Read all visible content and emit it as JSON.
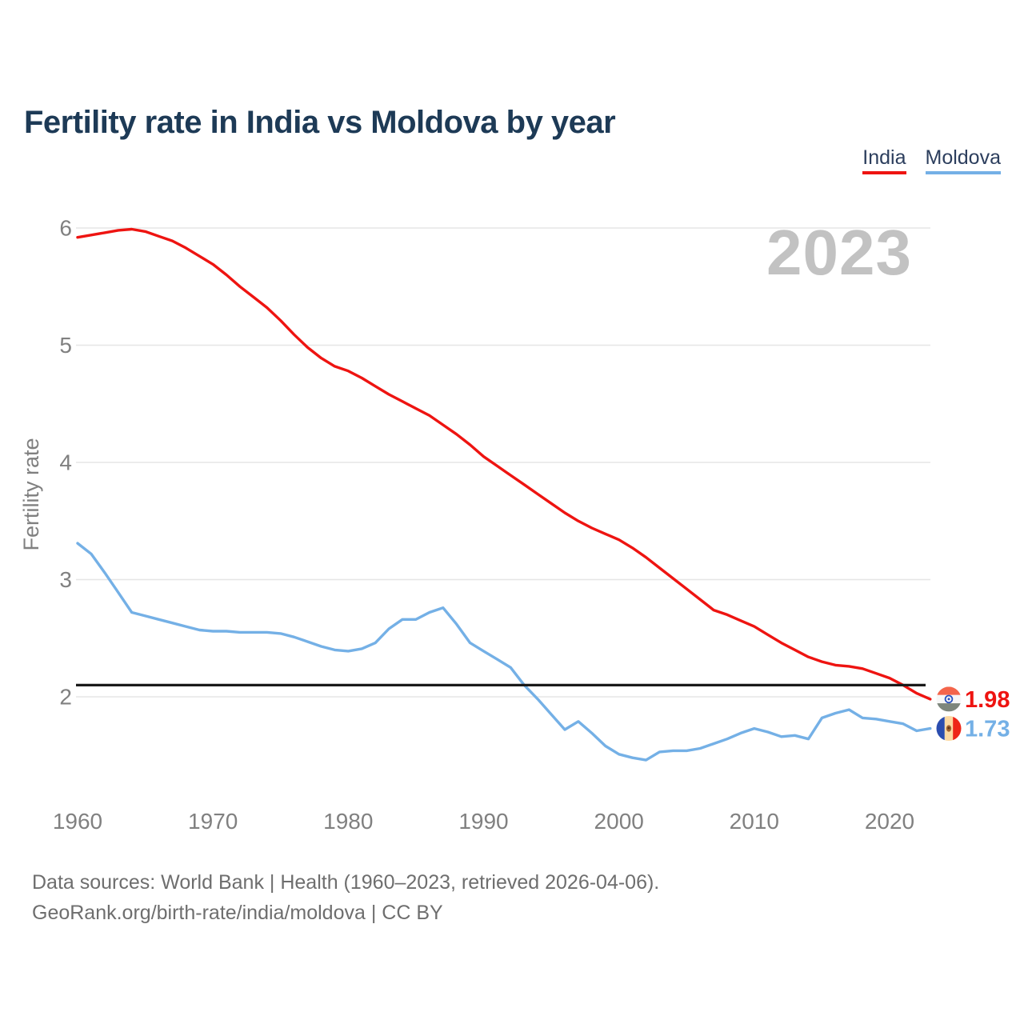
{
  "title": "Fertility rate in India vs Moldova by year",
  "watermark": "2023",
  "legend": {
    "items": [
      {
        "label": "India",
        "color": "#ee1411"
      },
      {
        "label": "Moldova",
        "color": "#74b0e6"
      }
    ]
  },
  "colors": {
    "title": "#1d3a56",
    "axis_text": "#808080",
    "grid": "#e6e6e6",
    "watermark": "#c2c2c2",
    "reference_line": "#1a1a1a",
    "footer_text": "#6e6e6e",
    "india": "#ee1411",
    "moldova": "#74b0e6"
  },
  "chart_data": {
    "type": "line",
    "title": "Fertility rate in India vs Moldova by year",
    "xlabel": "",
    "ylabel": "Fertility rate",
    "xlim": [
      1960,
      2023
    ],
    "ylim": [
      1.3,
      6.2
    ],
    "x_ticks": [
      1960,
      1970,
      1980,
      1990,
      2000,
      2010,
      2020
    ],
    "y_ticks": [
      2,
      3,
      4,
      5,
      6
    ],
    "grid": "horizontal",
    "legend_position": "top-right",
    "reference_line": {
      "value": 2.1,
      "color": "#1a1a1a"
    },
    "x": [
      1960,
      1961,
      1962,
      1963,
      1964,
      1965,
      1966,
      1967,
      1968,
      1969,
      1970,
      1971,
      1972,
      1973,
      1974,
      1975,
      1976,
      1977,
      1978,
      1979,
      1980,
      1981,
      1982,
      1983,
      1984,
      1985,
      1986,
      1987,
      1988,
      1989,
      1990,
      1991,
      1992,
      1993,
      1994,
      1995,
      1996,
      1997,
      1998,
      1999,
      2000,
      2001,
      2002,
      2003,
      2004,
      2005,
      2006,
      2007,
      2008,
      2009,
      2010,
      2011,
      2012,
      2013,
      2014,
      2015,
      2016,
      2017,
      2018,
      2019,
      2020,
      2021,
      2022,
      2023
    ],
    "series": [
      {
        "name": "India",
        "color": "#ee1411",
        "end_label": "1.98",
        "flag": "india-flag-icon",
        "values": [
          5.92,
          5.94,
          5.96,
          5.98,
          5.99,
          5.97,
          5.93,
          5.89,
          5.83,
          5.76,
          5.69,
          5.6,
          5.5,
          5.41,
          5.32,
          5.21,
          5.09,
          4.98,
          4.89,
          4.82,
          4.78,
          4.72,
          4.65,
          4.58,
          4.52,
          4.46,
          4.4,
          4.32,
          4.24,
          4.15,
          4.05,
          3.97,
          3.89,
          3.81,
          3.73,
          3.65,
          3.57,
          3.5,
          3.44,
          3.39,
          3.34,
          3.27,
          3.19,
          3.1,
          3.01,
          2.92,
          2.83,
          2.74,
          2.7,
          2.65,
          2.6,
          2.53,
          2.46,
          2.4,
          2.34,
          2.3,
          2.27,
          2.26,
          2.24,
          2.2,
          2.16,
          2.1,
          2.03,
          1.98
        ]
      },
      {
        "name": "Moldova",
        "color": "#74b0e6",
        "end_label": "1.73",
        "flag": "moldova-flag-icon",
        "values": [
          3.31,
          3.22,
          3.06,
          2.89,
          2.72,
          2.69,
          2.66,
          2.63,
          2.6,
          2.57,
          2.56,
          2.56,
          2.55,
          2.55,
          2.55,
          2.54,
          2.51,
          2.47,
          2.43,
          2.4,
          2.39,
          2.41,
          2.46,
          2.58,
          2.66,
          2.66,
          2.72,
          2.76,
          2.62,
          2.46,
          2.39,
          2.32,
          2.25,
          2.1,
          1.98,
          1.85,
          1.72,
          1.79,
          1.69,
          1.58,
          1.51,
          1.48,
          1.46,
          1.53,
          1.54,
          1.54,
          1.56,
          1.6,
          1.64,
          1.69,
          1.73,
          1.7,
          1.66,
          1.67,
          1.64,
          1.82,
          1.86,
          1.89,
          1.82,
          1.81,
          1.79,
          1.77,
          1.71,
          1.73
        ]
      }
    ]
  },
  "footer": {
    "line1": "Data sources: World Bank | Health (1960–2023, retrieved 2026-04-06).",
    "line2": "GeoRank.org/birth-rate/india/moldova | CC BY"
  }
}
